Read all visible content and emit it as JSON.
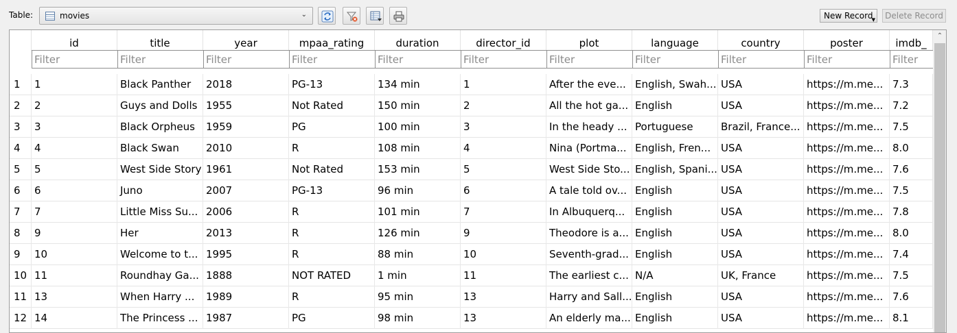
{
  "toolbar": {
    "table_label": "Table:",
    "selected_table": "movies",
    "new_record_label": "New Record",
    "delete_record_label": "Delete Record"
  },
  "grid": {
    "filter_placeholder": "Filter",
    "columns": [
      {
        "key": "rownum",
        "label": ""
      },
      {
        "key": "id",
        "label": "id"
      },
      {
        "key": "title",
        "label": "title"
      },
      {
        "key": "year",
        "label": "year"
      },
      {
        "key": "mpaa_rating",
        "label": "mpaa_rating"
      },
      {
        "key": "duration",
        "label": "duration"
      },
      {
        "key": "director_id",
        "label": "director_id"
      },
      {
        "key": "plot",
        "label": "plot"
      },
      {
        "key": "language",
        "label": "language"
      },
      {
        "key": "country",
        "label": "country"
      },
      {
        "key": "poster",
        "label": "poster"
      },
      {
        "key": "imdb",
        "label": "imdb_"
      }
    ],
    "rows": [
      [
        "1",
        "1",
        "Black Panther",
        "2018",
        "PG-13",
        "134 min",
        "1",
        "After the eve...",
        "English, Swah...",
        "USA",
        "https://m.me...",
        "7.3"
      ],
      [
        "2",
        "2",
        "Guys and Dolls",
        "1955",
        "Not Rated",
        "150 min",
        "2",
        "All the hot ga...",
        "English",
        "USA",
        "https://m.me...",
        "7.2"
      ],
      [
        "3",
        "3",
        "Black Orpheus",
        "1959",
        "PG",
        "100 min",
        "3",
        "In the heady ...",
        "Portuguese",
        "Brazil, France...",
        "https://m.me...",
        "7.5"
      ],
      [
        "4",
        "4",
        "Black Swan",
        "2010",
        "R",
        "108 min",
        "4",
        "Nina (Portma...",
        "English, Fren...",
        "USA",
        "https://m.me...",
        "8.0"
      ],
      [
        "5",
        "5",
        "West Side Story",
        "1961",
        "Not Rated",
        "153 min",
        "5",
        "West Side Sto...",
        "English, Spani...",
        "USA",
        "https://m.me...",
        "7.6"
      ],
      [
        "6",
        "6",
        "Juno",
        "2007",
        "PG-13",
        "96 min",
        "6",
        "A tale told ov...",
        "English",
        "USA",
        "https://m.me...",
        "7.5"
      ],
      [
        "7",
        "7",
        "Little Miss Su...",
        "2006",
        "R",
        "101 min",
        "7",
        "In Albuquerq...",
        "English",
        "USA",
        "https://m.me...",
        "7.8"
      ],
      [
        "8",
        "9",
        "Her",
        "2013",
        "R",
        "126 min",
        "9",
        "Theodore is a...",
        "English",
        "USA",
        "https://m.me...",
        "8.0"
      ],
      [
        "9",
        "10",
        "Welcome to t...",
        "1995",
        "R",
        "88 min",
        "10",
        "Seventh-grad...",
        "English",
        "USA",
        "https://m.me...",
        "7.4"
      ],
      [
        "10",
        "11",
        "Roundhay Ga...",
        "1888",
        "NOT RATED",
        "1 min",
        "11",
        "The earliest c...",
        "N/A",
        "UK, France",
        "https://m.me...",
        "7.5"
      ],
      [
        "11",
        "13",
        "When Harry ...",
        "1989",
        "R",
        "95 min",
        "13",
        "Harry and Sall...",
        "English",
        "USA",
        "https://m.me...",
        "7.6"
      ],
      [
        "12",
        "14",
        "The Princess ...",
        "1987",
        "PG",
        "98 min",
        "13",
        "An elderly ma...",
        "English",
        "USA",
        "https://m.me...",
        "8.1"
      ]
    ]
  }
}
